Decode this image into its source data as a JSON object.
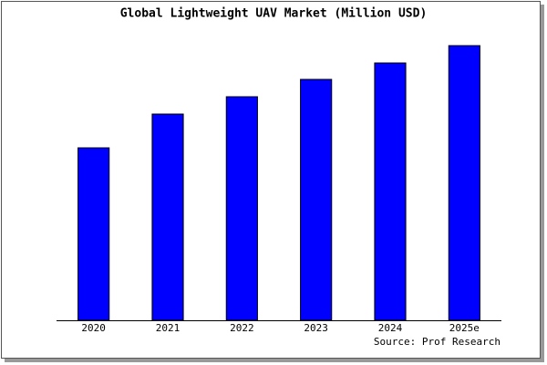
{
  "chart_data": {
    "type": "bar",
    "title": "Global Lightweight UAV Market (Million USD)",
    "categories": [
      "2020",
      "2021",
      "2022",
      "2023",
      "2024",
      "2025e"
    ],
    "values": [
      189,
      226,
      245,
      264,
      282,
      301
    ],
    "color": "#0000ff",
    "ylim": [
      0,
      306
    ],
    "source": "Source: Prof Research"
  }
}
